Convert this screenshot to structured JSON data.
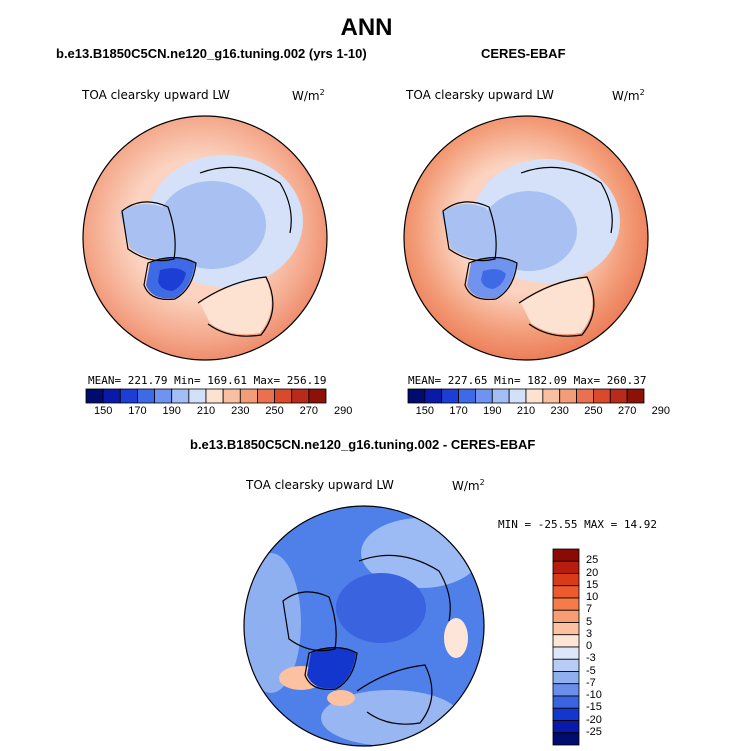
{
  "main_title": "ANN",
  "chart_data": [
    {
      "type": "heatmap",
      "projection": "north-polar-stereographic",
      "title": "b.e13.B1850C5CN.ne120_g16.tuning.002 (yrs 1-10)",
      "variable": "TOA clearsky upward LW",
      "units": "W/m",
      "units_exp": "2",
      "stats": {
        "mean_label": "MEAN=",
        "mean": "221.79",
        "min_label": "Min=",
        "min": "169.61",
        "max_label": "Max=",
        "max": "256.19"
      },
      "colorbar_labels": [
        "150",
        "170",
        "190",
        "210",
        "230",
        "250",
        "270",
        "290"
      ]
    },
    {
      "type": "heatmap",
      "projection": "north-polar-stereographic",
      "title": "CERES-EBAF",
      "variable": "TOA clearsky upward LW",
      "units": "W/m",
      "units_exp": "2",
      "stats": {
        "mean_label": "MEAN=",
        "mean": "227.65",
        "min_label": "Min=",
        "min": "182.09",
        "max_label": "Max=",
        "max": "260.37"
      },
      "colorbar_labels": [
        "150",
        "170",
        "190",
        "210",
        "230",
        "250",
        "270",
        "290"
      ]
    },
    {
      "type": "heatmap",
      "projection": "north-polar-stereographic",
      "title": "b.e13.B1850C5CN.ne120_g16.tuning.002 - CERES-EBAF",
      "variable": "TOA clearsky upward LW",
      "units": "W/m",
      "units_exp": "2",
      "stats_text": "MIN = -25.55 MAX =  14.92",
      "colorbar_labels": [
        "25",
        "20",
        "15",
        "10",
        "7",
        "5",
        "3",
        "0",
        "-3",
        "-5",
        "-7",
        "-10",
        "-15",
        "-20",
        "-25"
      ]
    }
  ],
  "colors": {
    "abs_colorbar": [
      "#000b6e",
      "#0a1aa8",
      "#1d3ed4",
      "#3f6ae6",
      "#6f93ee",
      "#a3bdf5",
      "#d2e0fa",
      "#fde2d2",
      "#f9bfa3",
      "#f39c78",
      "#ea7150",
      "#d94a2c",
      "#b82a1a",
      "#8c1208"
    ],
    "diff_colorbar": [
      "#8c0a04",
      "#b71d0c",
      "#d83a1a",
      "#ee5a2d",
      "#f57b48",
      "#f89e72",
      "#fbc1a1",
      "#fde6d7",
      "#dce8fa",
      "#b7cdf5",
      "#8fafef",
      "#6a8ee9",
      "#3a63e0",
      "#1336cf",
      "#0a1aa8",
      "#000b6e"
    ],
    "ocean_warm": "#f4a78a",
    "ocean_warm_edge": "#ee8a68",
    "mid_band": "#fbd3c0",
    "arctic_light": "#d4e1f8",
    "arctic_mid": "#a9c1f2",
    "greenland": "#3f6ae6",
    "diff_base": "#4f7fe8",
    "diff_light": "#a9c4f4"
  }
}
